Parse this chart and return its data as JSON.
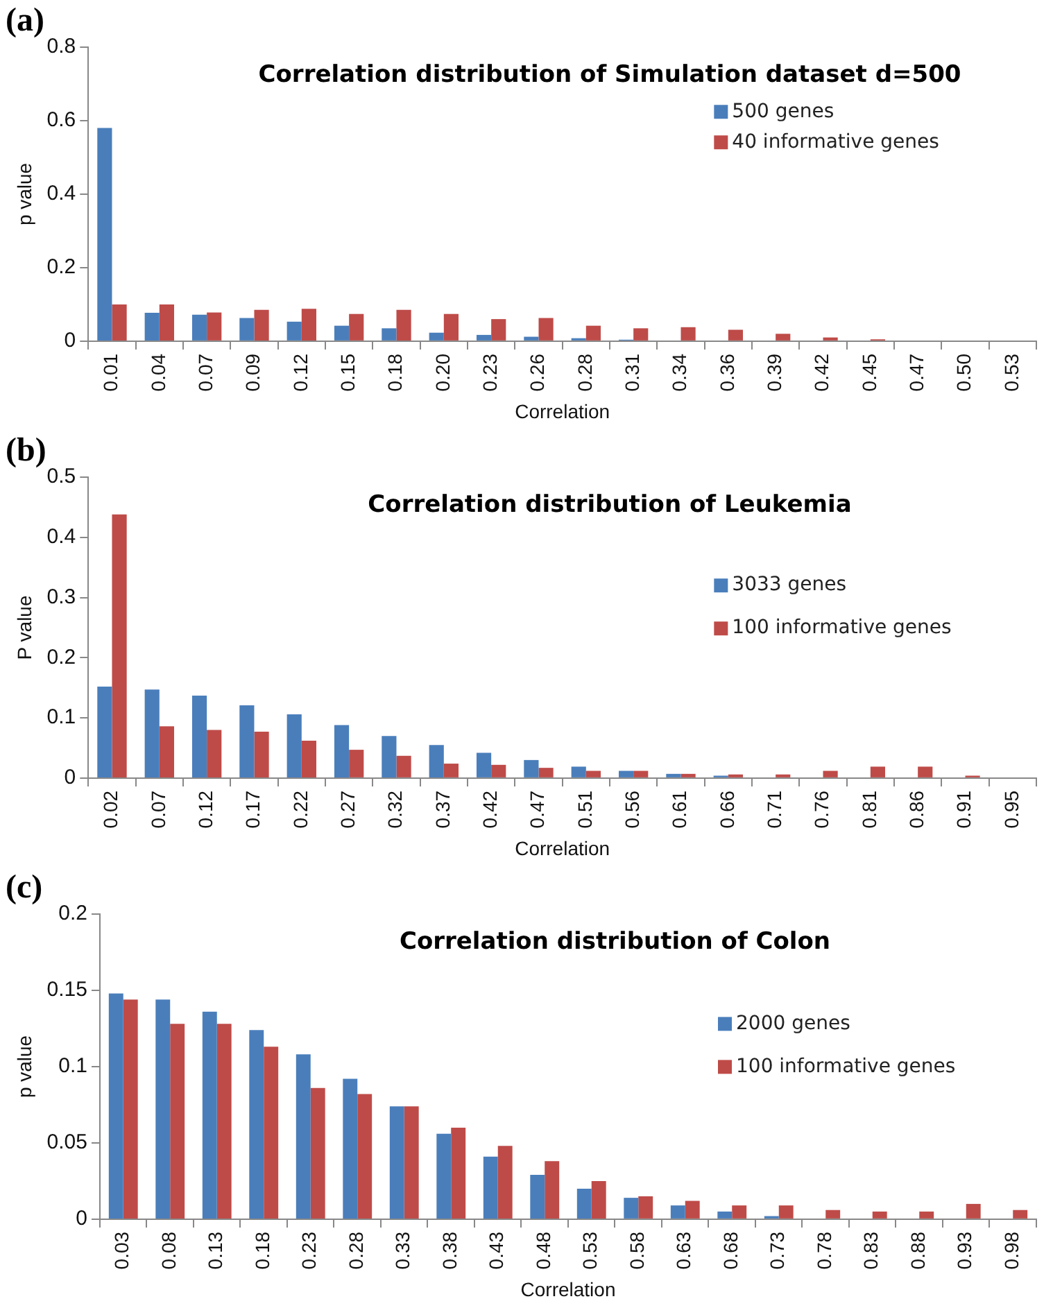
{
  "chart_data": [
    {
      "type": "bar",
      "title": "Correlation distribution of Simulation dataset d=500",
      "xlabel": "Correlation",
      "ylabel": "p value",
      "annotations": [
        "(a)"
      ],
      "categories": [
        "0.01",
        "0.04",
        "0.07",
        "0.09",
        "0.12",
        "0.15",
        "0.18",
        "0.20",
        "0.23",
        "0.26",
        "0.28",
        "0.31",
        "0.34",
        "0.36",
        "0.39",
        "0.42",
        "0.45",
        "0.47",
        "0.50",
        "0.53"
      ],
      "series": [
        {
          "name": "500 genes",
          "color": "#4a7ebb",
          "values": [
            0.58,
            0.077,
            0.072,
            0.063,
            0.053,
            0.042,
            0.035,
            0.023,
            0.017,
            0.012,
            0.008,
            0.004,
            0,
            0,
            0,
            0,
            0,
            0,
            0,
            0
          ]
        },
        {
          "name": "40 informative genes",
          "color": "#be4b48",
          "values": [
            0.1,
            0.1,
            0.078,
            0.085,
            0.088,
            0.074,
            0.085,
            0.074,
            0.06,
            0.063,
            0.042,
            0.035,
            0.038,
            0.031,
            0.02,
            0.01,
            0.005,
            0,
            0,
            0
          ]
        }
      ],
      "ylim": [
        0,
        0.8
      ],
      "yticks": [
        0,
        0.2,
        0.4,
        0.6,
        0.8
      ],
      "grid": false,
      "legend": "top right"
    },
    {
      "type": "bar",
      "title": "Correlation distribution of Leukemia",
      "xlabel": "Correlation",
      "ylabel": "P value",
      "annotations": [
        "(b)"
      ],
      "categories": [
        "0.02",
        "0.07",
        "0.12",
        "0.17",
        "0.22",
        "0.27",
        "0.32",
        "0.37",
        "0.42",
        "0.47",
        "0.51",
        "0.56",
        "0.61",
        "0.66",
        "0.71",
        "0.76",
        "0.81",
        "0.86",
        "0.91",
        "0.95"
      ],
      "series": [
        {
          "name": "3033 genes",
          "color": "#4a7ebb",
          "values": [
            0.152,
            0.147,
            0.137,
            0.121,
            0.106,
            0.088,
            0.07,
            0.055,
            0.042,
            0.03,
            0.019,
            0.012,
            0.007,
            0.004,
            0,
            0,
            0,
            0,
            0,
            0
          ]
        },
        {
          "name": "100 informative genes",
          "color": "#be4b48",
          "values": [
            0.438,
            0.086,
            0.08,
            0.077,
            0.062,
            0.047,
            0.037,
            0.024,
            0.022,
            0.017,
            0.012,
            0.012,
            0.007,
            0.006,
            0.006,
            0.012,
            0.019,
            0.019,
            0.004,
            0
          ]
        }
      ],
      "ylim": [
        0,
        0.5
      ],
      "yticks": [
        0,
        0.1,
        0.2,
        0.3,
        0.4,
        0.5
      ],
      "grid": false,
      "legend": "right"
    },
    {
      "type": "bar",
      "title": "Correlation distribution of Colon",
      "xlabel": "Correlation",
      "ylabel": "p value",
      "annotations": [
        "(c)"
      ],
      "categories": [
        "0.03",
        "0.08",
        "0.13",
        "0.18",
        "0.23",
        "0.28",
        "0.33",
        "0.38",
        "0.43",
        "0.48",
        "0.53",
        "0.58",
        "0.63",
        "0.68",
        "0.73",
        "0.78",
        "0.83",
        "0.88",
        "0.93",
        "0.98"
      ],
      "series": [
        {
          "name": "2000 genes",
          "color": "#4a7ebb",
          "values": [
            0.148,
            0.144,
            0.136,
            0.124,
            0.108,
            0.092,
            0.074,
            0.056,
            0.041,
            0.029,
            0.02,
            0.014,
            0.009,
            0.005,
            0.002,
            0,
            0,
            0,
            0,
            0
          ]
        },
        {
          "name": "100 informative genes",
          "color": "#be4b48",
          "values": [
            0.144,
            0.128,
            0.128,
            0.113,
            0.086,
            0.082,
            0.074,
            0.06,
            0.048,
            0.038,
            0.025,
            0.015,
            0.012,
            0.009,
            0.009,
            0.006,
            0.005,
            0.005,
            0.01,
            0.006
          ]
        }
      ],
      "ylim": [
        0,
        0.2
      ],
      "yticks": [
        0,
        0.05,
        0.1,
        0.15,
        0.2
      ],
      "grid": false,
      "legend": "right"
    }
  ]
}
